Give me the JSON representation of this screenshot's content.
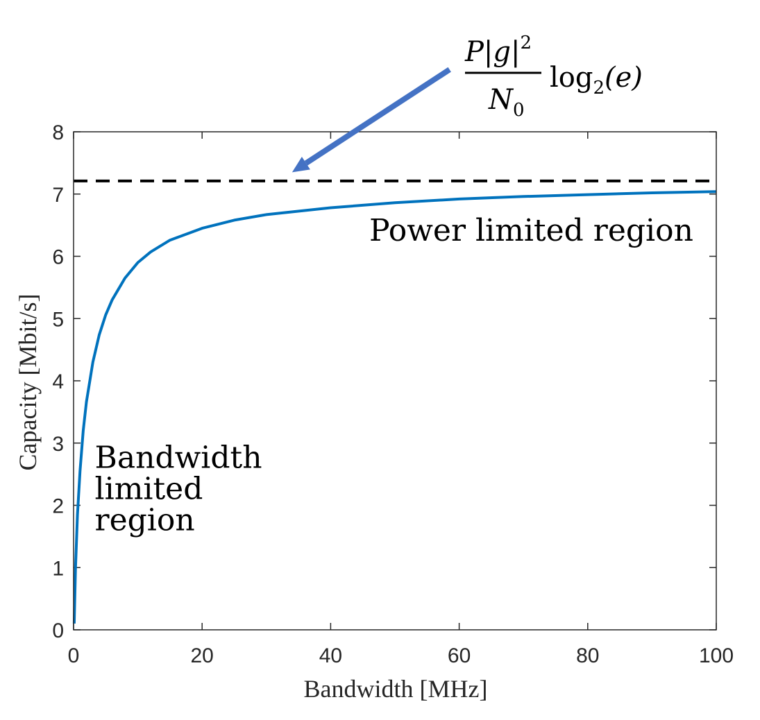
{
  "chart_data": {
    "type": "line",
    "xlabel": "Bandwidth [MHz]",
    "ylabel": "Capacity [Mbit/s]",
    "xlim": [
      0,
      100
    ],
    "ylim": [
      0,
      8
    ],
    "xticks": [
      0,
      20,
      40,
      60,
      80,
      100
    ],
    "yticks": [
      0,
      1,
      2,
      3,
      4,
      5,
      6,
      7,
      8
    ],
    "grid": false,
    "series": [
      {
        "color": "#0072bd",
        "style": "solid",
        "x": [
          0.1,
          0.3,
          0.6,
          1,
          1.5,
          2,
          3,
          4,
          5,
          6,
          8,
          10,
          12,
          15,
          20,
          25,
          30,
          40,
          50,
          60,
          70,
          80,
          90,
          100
        ],
        "y": [
          0.1,
          1.0,
          1.85,
          2.55,
          3.2,
          3.66,
          4.3,
          4.74,
          5.06,
          5.3,
          5.65,
          5.9,
          6.07,
          6.26,
          6.45,
          6.58,
          6.67,
          6.78,
          6.86,
          6.92,
          6.96,
          6.99,
          7.02,
          7.04
        ]
      },
      {
        "color": "#000000",
        "style": "dashed",
        "x": [
          0,
          100
        ],
        "y": [
          7.21,
          7.21
        ]
      }
    ],
    "annotations": [
      {
        "text": "Power limited region",
        "x": 46,
        "y": 6.25
      },
      {
        "text": "Bandwidth",
        "x": 3.3,
        "y": 2.6
      },
      {
        "text": "limited",
        "x": 3.3,
        "y": 2.1
      },
      {
        "text": "region",
        "x": 3.3,
        "y": 1.6
      }
    ],
    "arrow": {
      "color": "#4472c4",
      "from": {
        "x": 58.5,
        "y": 9.0
      },
      "to": {
        "x": 34.0,
        "y": 7.35
      }
    },
    "formula": {
      "numerator": "P|g|",
      "numerator_sup": "2",
      "denominator": "N",
      "denominator_sub": "0",
      "function": "log",
      "function_sub": "2",
      "argument": "(e)"
    }
  }
}
